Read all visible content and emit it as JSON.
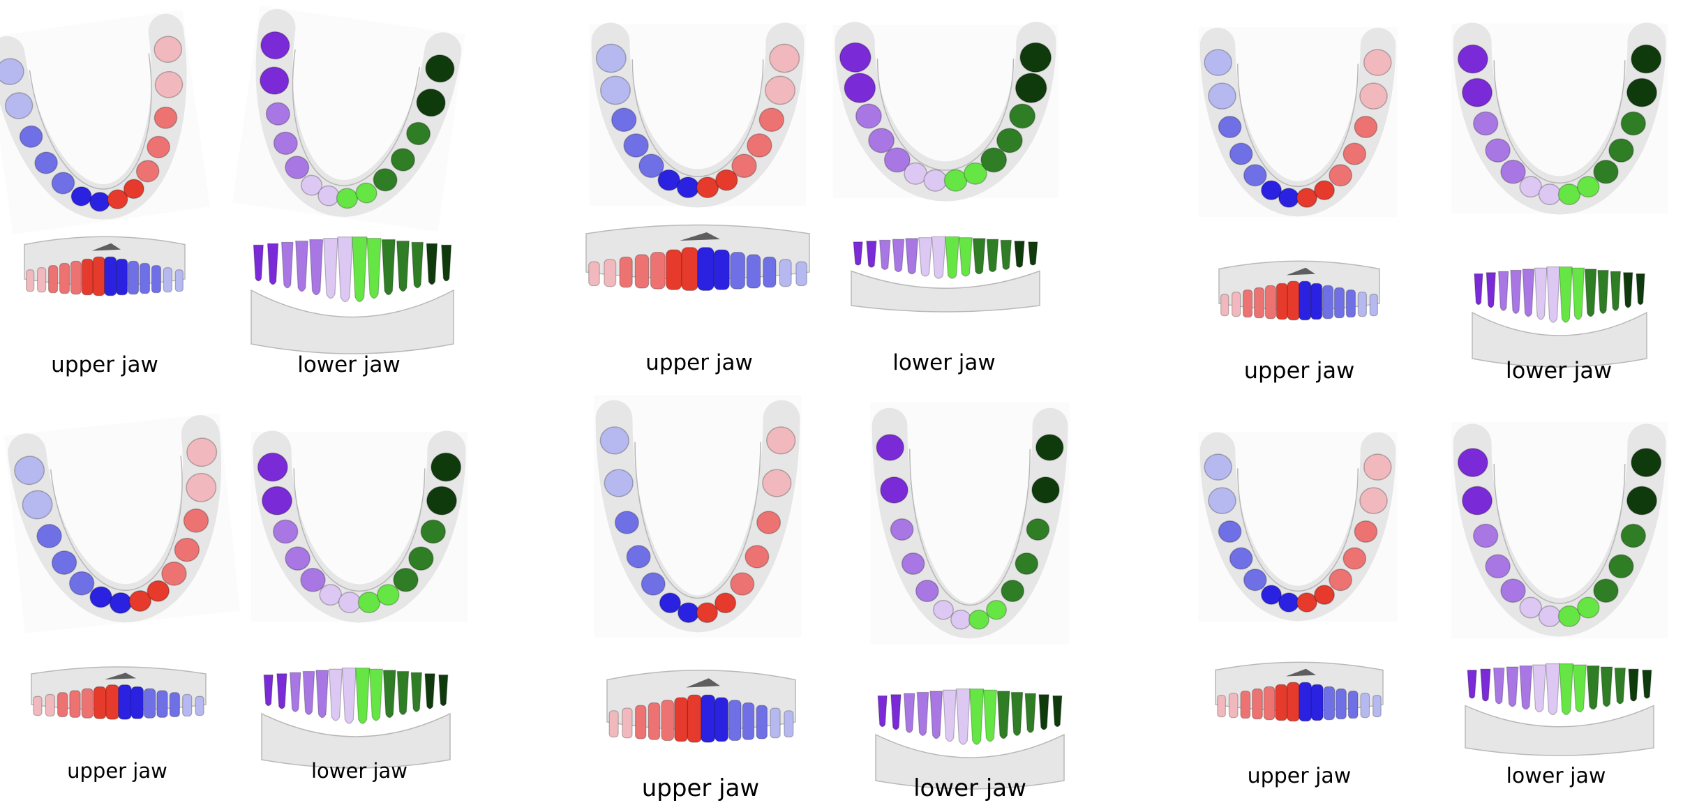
{
  "colors": {
    "upper_right_molar": "#f1b9bd",
    "upper_right_mid": "#ec7372",
    "upper_right_front": "#e53a2c",
    "upper_left_molar": "#b6b8f0",
    "upper_left_mid": "#6f70e6",
    "upper_left_front": "#2a22e0",
    "lower_left_molar": "#7a2ad6",
    "lower_left_mid": "#a877e4",
    "lower_left_front": "#dcc8f3",
    "lower_right_molar": "#0f3a0c",
    "lower_right_mid": "#2f7d24",
    "lower_right_front": "#66e644",
    "gum": "#e6e6e6",
    "gum_edge": "#b8b8b8",
    "hole": "#5e5e5e"
  },
  "panels": [
    {
      "upper_caption": "upper jaw",
      "lower_caption": "lower jaw"
    },
    {
      "upper_caption": "upper jaw",
      "lower_caption": "lower jaw"
    },
    {
      "upper_caption": "upper jaw",
      "lower_caption": "lower jaw"
    },
    {
      "upper_caption": "upper jaw",
      "lower_caption": "lower jaw"
    },
    {
      "upper_caption": "upper jaw",
      "lower_caption": "lower jaw"
    },
    {
      "upper_caption": "upper jaw",
      "lower_caption": "lower jaw"
    }
  ]
}
